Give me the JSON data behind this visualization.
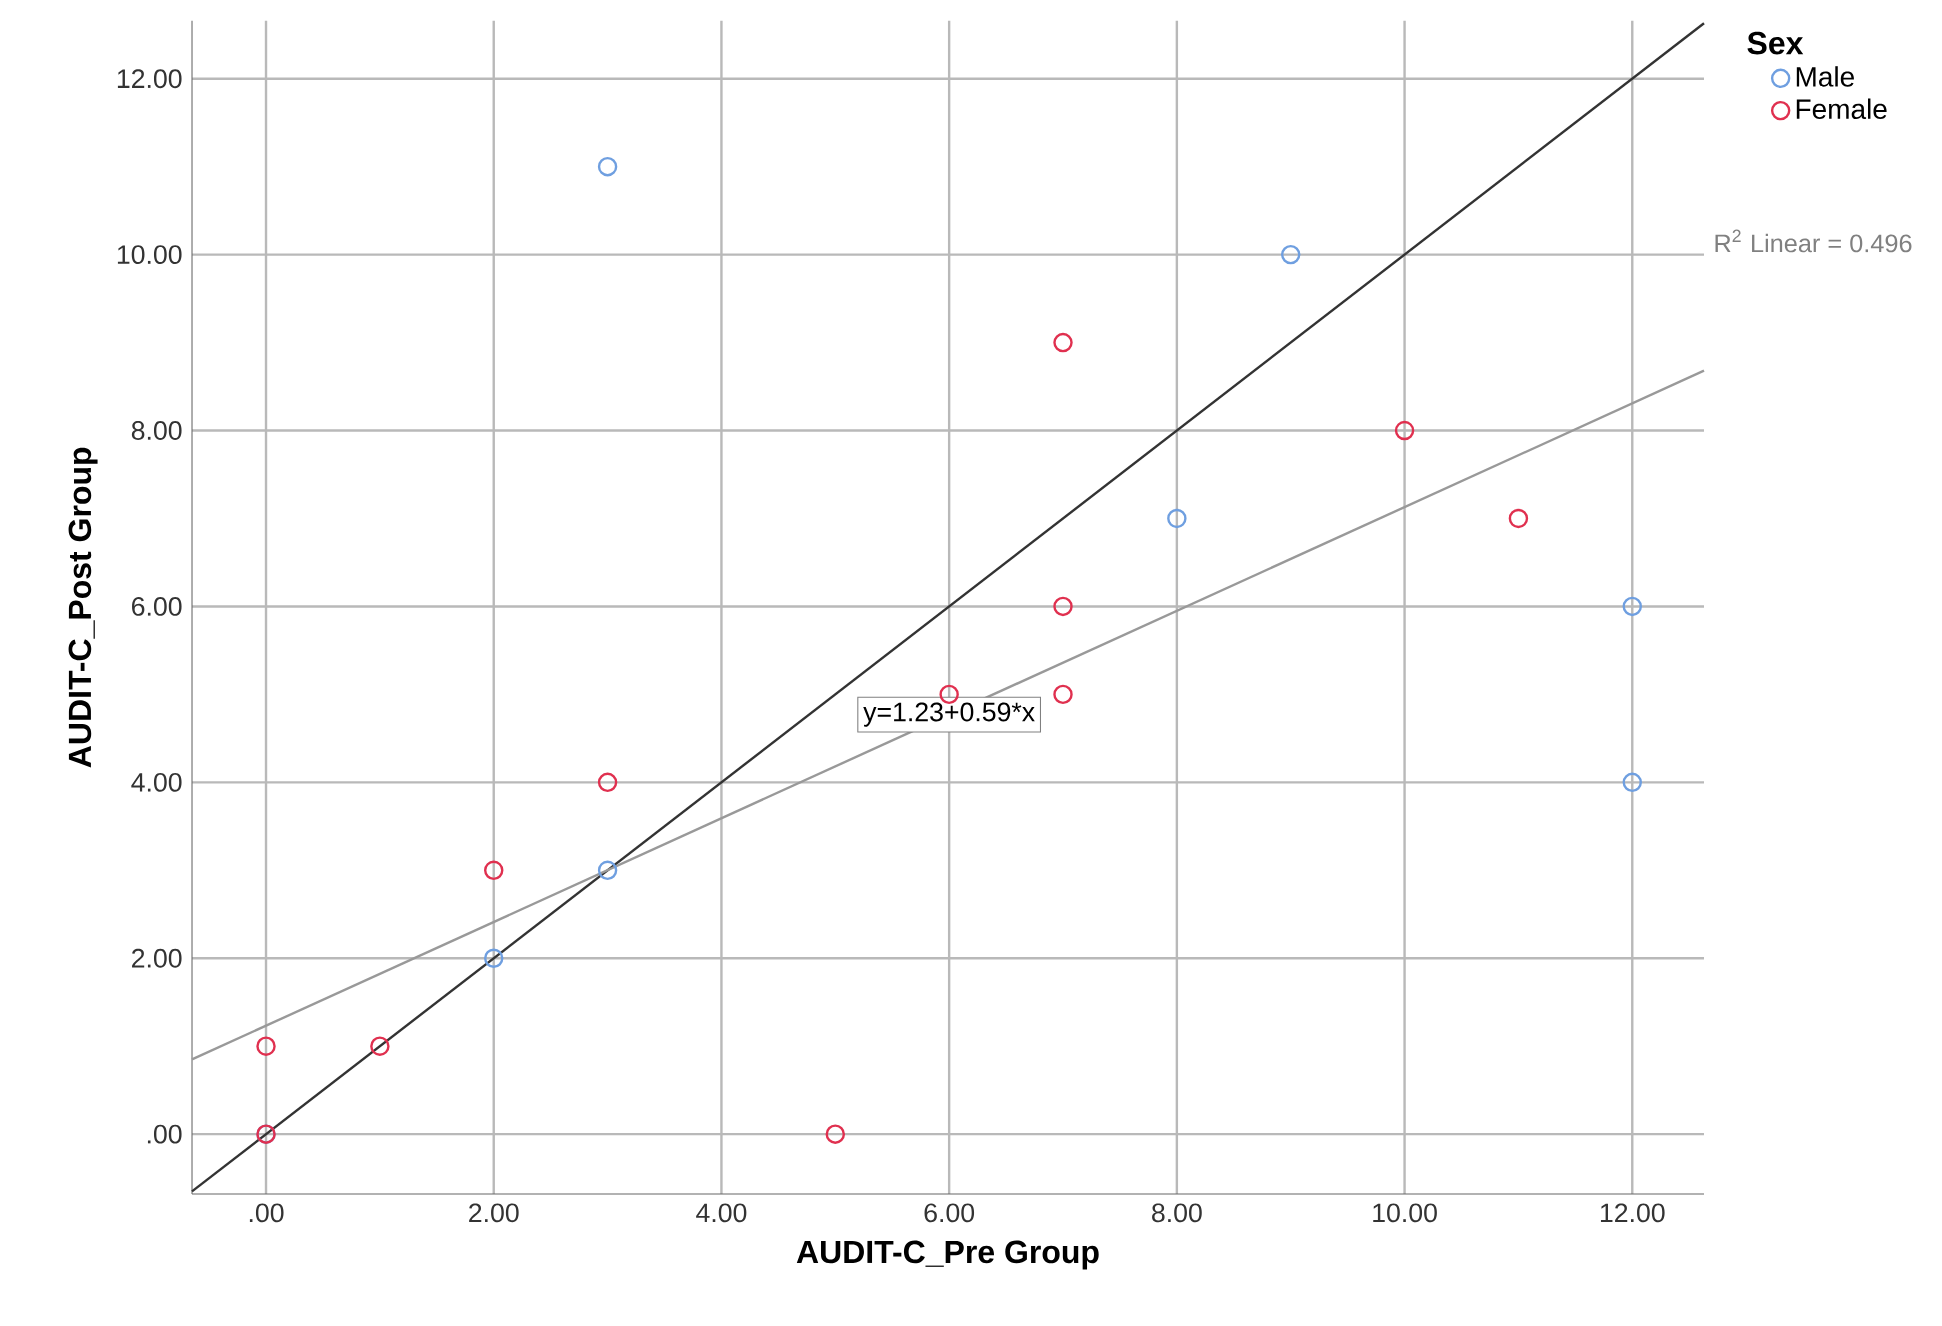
{
  "chart_data": {
    "type": "scatter",
    "xlabel": "AUDIT-C_Pre Group",
    "ylabel": "AUDIT-C_Post Group",
    "legend_title": "Sex",
    "series": [
      {
        "name": "Male",
        "color": "#6f9fe0",
        "x": [
          3,
          9,
          8,
          12,
          12,
          3,
          2,
          0
        ],
        "values": [
          11,
          10,
          7,
          6,
          4,
          3,
          2,
          0
        ]
      },
      {
        "name": "Female",
        "color": "#e0304f",
        "x": [
          7,
          10,
          11,
          7,
          7,
          6,
          3,
          2,
          0,
          1,
          0,
          5
        ],
        "values": [
          9,
          8,
          7,
          6,
          5,
          5,
          4,
          3,
          1,
          1,
          0,
          0
        ]
      },
      {
        "type": "line",
        "color": "#333333",
        "marker": "none",
        "x": [
          -0.65,
          12.63
        ],
        "values": [
          -0.65,
          12.63
        ]
      },
      {
        "type": "line",
        "color": "#999999",
        "marker": "none",
        "x": [
          -0.65,
          12.63
        ],
        "values": [
          0.85,
          8.68
        ]
      }
    ],
    "annotations": [
      {
        "text": "y=1.23+0.59*x",
        "x": 6,
        "y": 4.77
      },
      "R$^{2}$ Linear = 0.496"
    ],
    "xlim": [
      -0.65,
      12.63
    ],
    "ylim": [
      -0.68,
      12.66
    ],
    "xticks": [
      {
        "value": 0,
        "label": ".00"
      },
      {
        "value": 2,
        "label": "2.00"
      },
      {
        "value": 4,
        "label": "4.00"
      },
      {
        "value": 6,
        "label": "6.00"
      },
      {
        "value": 8,
        "label": "8.00"
      },
      {
        "value": 10,
        "label": "10.00"
      },
      {
        "value": 12,
        "label": "12.00"
      }
    ],
    "yticks": [
      {
        "value": 0,
        "label": ".00"
      },
      {
        "value": 2,
        "label": "2.00"
      },
      {
        "value": 4,
        "label": "4.00"
      },
      {
        "value": 6,
        "label": "6.00"
      },
      {
        "value": 8,
        "label": "8.00"
      },
      {
        "value": 10,
        "label": "10.00"
      },
      {
        "value": 12,
        "label": "12.00"
      }
    ],
    "grid": true,
    "legend": "top right",
    "marker": "circle"
  }
}
